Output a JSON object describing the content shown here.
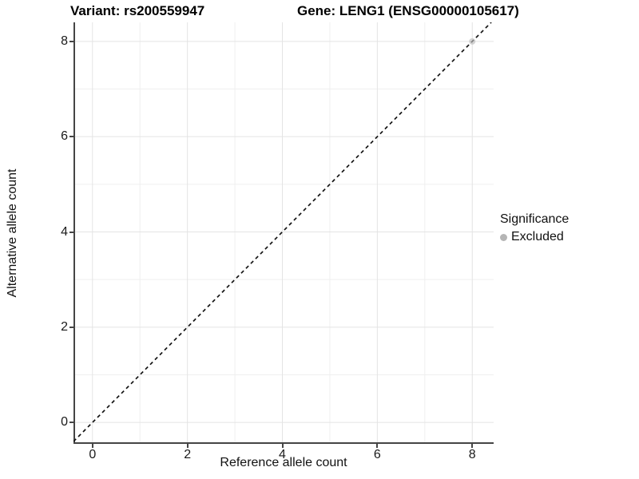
{
  "title": {
    "variant": "Variant: rs200559947",
    "gene": "Gene: LENG1 (ENSG00000105617)"
  },
  "axes": {
    "x": {
      "label": "Reference allele count"
    },
    "y": {
      "label": "Alternative allele count"
    }
  },
  "legend": {
    "title": "Significance",
    "items": [
      {
        "label": "Excluded",
        "color": "#b5b5b5"
      }
    ]
  },
  "colors": {
    "background": "#ffffff",
    "grid_major": "#e4e4e4",
    "grid_minor": "#efefef",
    "axis_line": "#454545",
    "reference_line": "#141414",
    "point": "#bdbdbd"
  },
  "chart_data": {
    "type": "scatter",
    "title": "Variant: rs200559947   Gene: LENG1 (ENSG00000105617)",
    "xlabel": "Reference allele count",
    "ylabel": "Alternative allele count",
    "xlim": [
      -0.4,
      8.45
    ],
    "ylim": [
      -0.45,
      8.4
    ],
    "xticks": [
      0,
      2,
      4,
      6,
      8
    ],
    "yticks": [
      0,
      2,
      4,
      6,
      8
    ],
    "xminor": [
      1,
      3,
      5,
      7
    ],
    "yminor": [
      1,
      3,
      5,
      7
    ],
    "grid": true,
    "legend_position": "right",
    "series": [
      {
        "name": "Excluded",
        "color": "#bdbdbd",
        "points": [
          {
            "x": 8,
            "y": 8
          }
        ]
      }
    ],
    "reference_line": {
      "type": "abline",
      "slope": 1,
      "intercept": 0,
      "style": "dashed",
      "color": "#141414"
    }
  }
}
